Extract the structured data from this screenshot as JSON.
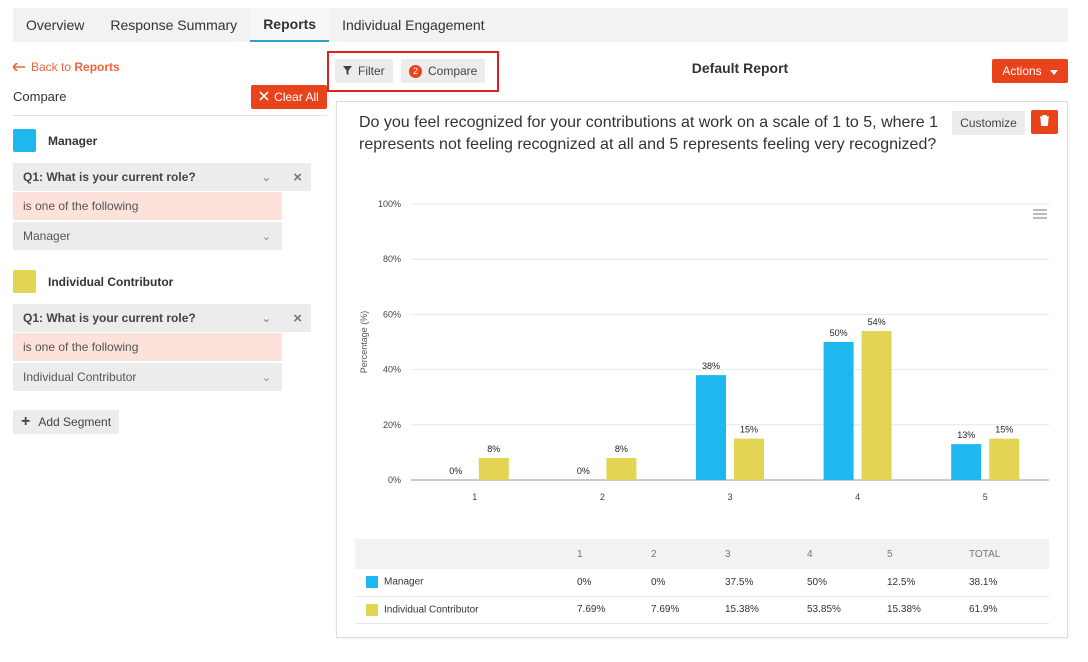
{
  "tabs": [
    {
      "label": "Overview"
    },
    {
      "label": "Response Summary"
    },
    {
      "label": "Reports"
    },
    {
      "label": "Individual Engagement"
    }
  ],
  "sidebar": {
    "back_prefix": "Back to",
    "back_target": "Reports",
    "compare_label": "Compare",
    "clear_all_label": "Clear All",
    "add_segment_label": "Add Segment",
    "segments": [
      {
        "name": "Manager",
        "color": "#1eb7ee",
        "question": "Q1: What is your current role?",
        "condition": "is one of the following",
        "value": "Manager"
      },
      {
        "name": "Individual Contributor",
        "color": "#e3d454",
        "question": "Q1: What is your current role?",
        "condition": "is one of the following",
        "value": "Individual Contributor"
      }
    ]
  },
  "toolbar": {
    "filter_label": "Filter",
    "compare_label": "Compare",
    "compare_count": "2",
    "report_title": "Default Report",
    "actions_label": "Actions"
  },
  "panel": {
    "question": "Do you feel recognized for your contributions at work on a scale of 1 to 5, where 1 represents not feeling recognized at all and 5 represents feeling very recognized?",
    "customize_label": "Customize"
  },
  "chart_data": {
    "type": "bar",
    "categories": [
      "1",
      "2",
      "3",
      "4",
      "5"
    ],
    "series": [
      {
        "name": "Manager",
        "color": "#1eb7ee",
        "values": [
          0,
          0,
          38,
          50,
          13
        ],
        "labels": [
          "0%",
          "0%",
          "38%",
          "50%",
          "13%"
        ]
      },
      {
        "name": "Individual Contributor",
        "color": "#e3d454",
        "values": [
          8,
          8,
          15,
          54,
          15
        ],
        "labels": [
          "8%",
          "8%",
          "15%",
          "54%",
          "15%"
        ]
      }
    ],
    "ylabel": "Percentage (%)",
    "yticks": [
      "0%",
      "20%",
      "40%",
      "60%",
      "80%",
      "100%"
    ],
    "ylim": [
      0,
      100
    ],
    "grid": true
  },
  "table": {
    "headers": [
      "",
      "1",
      "2",
      "3",
      "4",
      "5",
      "TOTAL"
    ],
    "rows": [
      {
        "name": "Manager",
        "color": "#1eb7ee",
        "cells": [
          "0%",
          "0%",
          "37.5%",
          "50%",
          "12.5%",
          "38.1%"
        ]
      },
      {
        "name": "Individual Contributor",
        "color": "#e3d454",
        "cells": [
          "7.69%",
          "7.69%",
          "15.38%",
          "53.85%",
          "15.38%",
          "61.9%"
        ]
      }
    ]
  }
}
